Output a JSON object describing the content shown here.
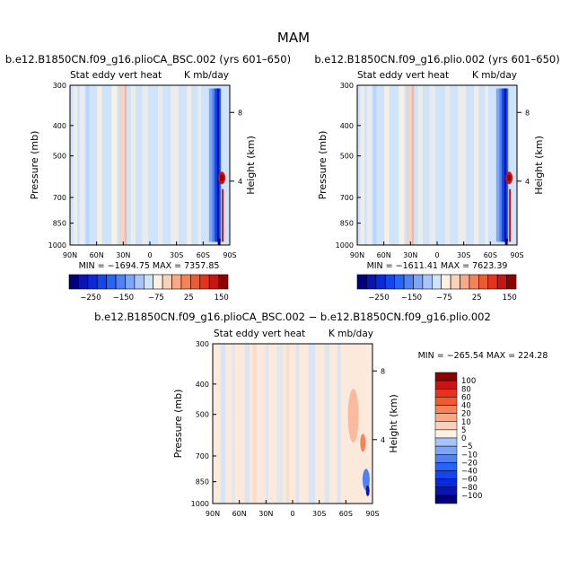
{
  "figure": {
    "title": "MAM"
  },
  "colors": {
    "panel_bg": "#cfe3fb",
    "palette": [
      "#00007d",
      "#0a14b4",
      "#0a28dc",
      "#1446f0",
      "#2864f5",
      "#5082f5",
      "#7ea5f8",
      "#a8c5fb",
      "#cfe3fb",
      "#fff1e1",
      "#fbd2b9",
      "#f8aa88",
      "#f5825a",
      "#ef5a32",
      "#e6321e",
      "#c81414",
      "#8c0000"
    ]
  },
  "chart_data": [
    {
      "type": "heatmap",
      "id": "panel1",
      "title": "b.e12.B1850CN.f09_g16.plioCA_BSC.002 (yrs 601–650)",
      "subtitle_left": "Stat eddy vert heat",
      "subtitle_right": "K mb/day",
      "ylabel": "Pressure (mb)",
      "ylabel_right": "Height (km)",
      "x_ticks": [
        "90N",
        "60N",
        "30N",
        "0",
        "30S",
        "60S",
        "90S"
      ],
      "y_ticks": [
        "300",
        "400",
        "500",
        "700",
        "850",
        "1000"
      ],
      "y_ticks_right": [
        "8",
        "4"
      ],
      "stats": "MIN = −1694.75   MAX = 7357.85"
    },
    {
      "type": "heatmap",
      "id": "panel2",
      "title": "b.e12.B1850CN.f09_g16.plio.002 (yrs 601–650)",
      "subtitle_left": "Stat eddy vert heat",
      "subtitle_right": "K mb/day",
      "ylabel": "Pressure (mb)",
      "ylabel_right": "Height (km)",
      "x_ticks": [
        "90N",
        "60N",
        "30N",
        "0",
        "30S",
        "60S",
        "90S"
      ],
      "y_ticks": [
        "300",
        "400",
        "500",
        "700",
        "850",
        "1000"
      ],
      "y_ticks_right": [
        "8",
        "4"
      ],
      "stats": "MIN = −1611.41   MAX = 7623.39"
    },
    {
      "type": "heatmap",
      "id": "panel3",
      "title": "b.e12.B1850CN.f09_g16.plioCA_BSC.002 − b.e12.B1850CN.f09_g16.plio.002",
      "subtitle_left": "Stat eddy vert heat",
      "subtitle_right": "K mb/day",
      "ylabel": "Pressure (mb)",
      "ylabel_right": "Height (km)",
      "x_ticks": [
        "90N",
        "60N",
        "30N",
        "0",
        "30S",
        "60S",
        "90S"
      ],
      "y_ticks": [
        "300",
        "400",
        "500",
        "700",
        "850",
        "1000"
      ],
      "y_ticks_right": [
        "8",
        "4"
      ],
      "stats": "MIN = −265.54   MAX = 224.28"
    }
  ],
  "colorbar_horizontal": {
    "labels": [
      "−250",
      "−150",
      "−75",
      "25",
      "150"
    ]
  },
  "colorbar_vertical": {
    "labels": [
      "100",
      "80",
      "60",
      "40",
      "20",
      "10",
      "5",
      "0",
      "−5",
      "−10",
      "−20",
      "−40",
      "−60",
      "−80",
      "−100"
    ]
  }
}
